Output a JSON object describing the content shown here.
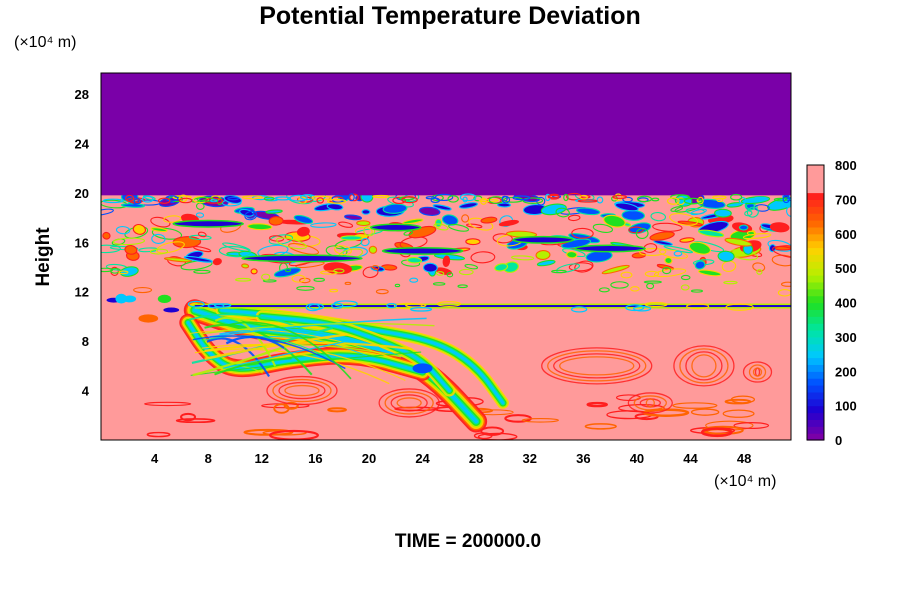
{
  "chart_data": {
    "type": "heatmap",
    "title": "Potential Temperature Deviation",
    "ylabel": "Height",
    "x_unit": "(×10⁴ m)",
    "y_unit": "(×10⁴ m)",
    "x_ticks": [
      4,
      8,
      12,
      16,
      20,
      24,
      28,
      32,
      36,
      40,
      44,
      48
    ],
    "y_ticks": [
      4,
      8,
      12,
      16,
      20,
      24,
      28
    ],
    "xlim": [
      0,
      51.5
    ],
    "ylim": [
      0,
      29.7
    ],
    "colorbar": {
      "ticks": [
        0,
        100,
        200,
        300,
        400,
        500,
        600,
        700,
        800
      ],
      "range": [
        0,
        800
      ],
      "colors": [
        "#7a00a8",
        "#1e00d2",
        "#0050ff",
        "#00c8ff",
        "#00e6a0",
        "#20e020",
        "#b4f000",
        "#ffd200",
        "#ff6400",
        "#ff1e1e",
        "#ff9a9a"
      ]
    },
    "field": {
      "background_value": 800,
      "upper_layer": {
        "y_from": 19.8,
        "y_to": 29.7,
        "value": 0
      },
      "turbulent_band": {
        "y_from": 13.5,
        "y_to": 19.8
      },
      "interface_line": {
        "x_from": 7,
        "x_to": 51.5,
        "y": 10.8
      },
      "plume": {
        "x_from": 6,
        "x_to": 30,
        "y_from": 2,
        "y_to": 11
      }
    }
  },
  "footer": {
    "time_label": "TIME = 200000.0"
  }
}
